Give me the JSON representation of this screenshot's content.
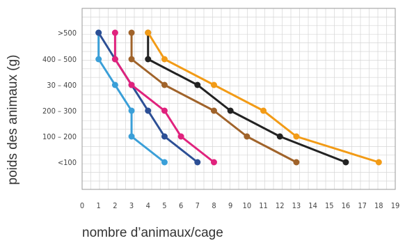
{
  "chart_data": {
    "type": "line",
    "title": "",
    "xlabel": "nombre d’animaux/cage",
    "ylabel": "poids des animaux (g)",
    "x_ticks": [
      "0",
      "1",
      "2",
      "3",
      "4",
      "5",
      "6",
      "7",
      "8",
      "9",
      "10",
      "11",
      "12",
      "13",
      "14",
      "15",
      "16",
      "17",
      "18",
      "19"
    ],
    "xlim": [
      0,
      19
    ],
    "categories": [
      "<100",
      "100 – 200",
      "200 – 300",
      "30 – 400",
      "400 – 500",
      ">500"
    ],
    "grid": true,
    "legend": "none",
    "series": [
      {
        "color": "#3a9fd8",
        "x": [
          5,
          3,
          3,
          2,
          1,
          1
        ]
      },
      {
        "color": "#2c4f95",
        "x": [
          7,
          5,
          4,
          3,
          2,
          1
        ]
      },
      {
        "color": "#e0227d",
        "x": [
          8,
          6,
          5,
          3,
          2,
          2
        ]
      },
      {
        "color": "#a0632a",
        "x": [
          13,
          10,
          8,
          5,
          3,
          3
        ]
      },
      {
        "color": "#222222",
        "x": [
          16,
          12,
          9,
          7,
          4,
          4
        ]
      },
      {
        "color": "#f29b16",
        "x": [
          18,
          13,
          11,
          8,
          5,
          4
        ]
      }
    ]
  }
}
